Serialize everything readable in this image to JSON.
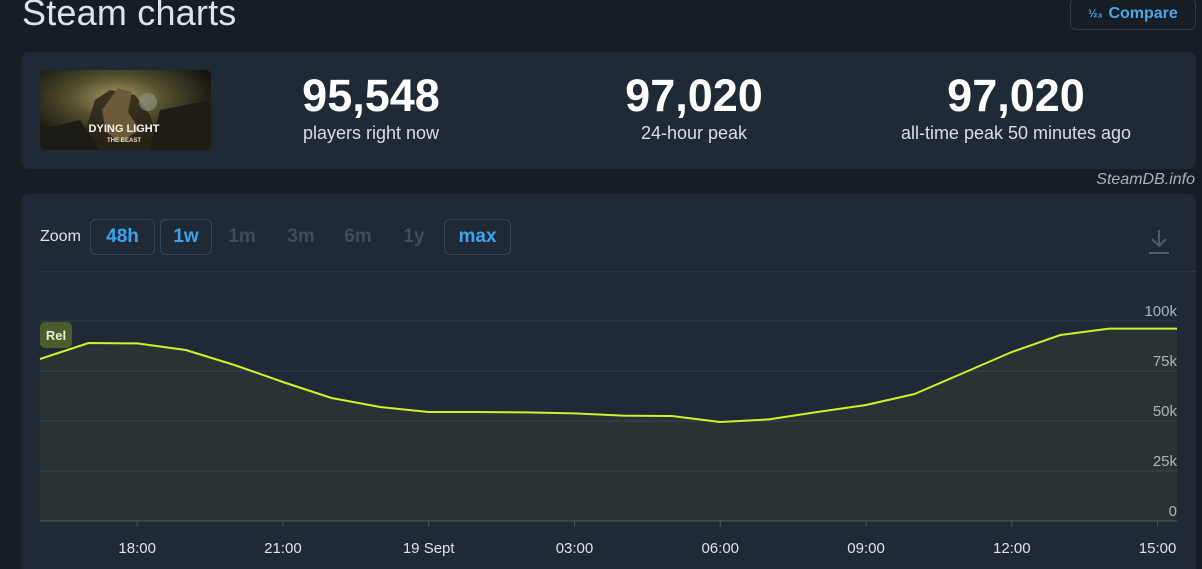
{
  "page": {
    "title": "Steam charts",
    "compare_label": "Compare",
    "compare_icon_text": "½₃"
  },
  "game": {
    "thumbnail_title": "DYING LIGHT",
    "thumbnail_subtitle": "THE BEAST"
  },
  "stats": [
    {
      "value": "95,548",
      "label": "players right now"
    },
    {
      "value": "97,020",
      "label": "24-hour peak"
    },
    {
      "value": "97,020",
      "label": "all-time peak 50 minutes ago"
    }
  ],
  "credit": "SteamDB.info",
  "zoom": {
    "label": "Zoom",
    "buttons": [
      {
        "label": "48h",
        "state": "active"
      },
      {
        "label": "1w",
        "state": "active"
      },
      {
        "label": "1m",
        "state": "disabled"
      },
      {
        "label": "3m",
        "state": "disabled"
      },
      {
        "label": "6m",
        "state": "disabled"
      },
      {
        "label": "1y",
        "state": "disabled"
      },
      {
        "label": "max",
        "state": "active"
      }
    ]
  },
  "icons": {
    "download": "download-icon",
    "compare": "compare-icon"
  },
  "colors": {
    "line": "#d4f02b",
    "accent_blue": "#3ba4f0",
    "panel_bg": "#202a37",
    "page_bg": "#171d25",
    "rel_badge_bg": "#4b5d2a"
  },
  "chart_data": {
    "type": "line",
    "series_badge": "Rel",
    "x_ticks": [
      "18:00",
      "21:00",
      "19 Sept",
      "03:00",
      "06:00",
      "09:00",
      "12:00",
      "15:00"
    ],
    "y_ticks": [
      "0",
      "25k",
      "50k",
      "75k",
      "100k"
    ],
    "ylim": [
      0,
      100000
    ],
    "x_unit": "hours since 18 Sept 18:00",
    "xlim": [
      -2,
      21.4
    ],
    "grid": true,
    "x": [
      -2,
      -1,
      0,
      1,
      2,
      3,
      4,
      5,
      6,
      7,
      8,
      9,
      10,
      11,
      12,
      13,
      14,
      15,
      16,
      17,
      18,
      19,
      20,
      21.4
    ],
    "values": [
      81000,
      89000,
      88800,
      85500,
      78000,
      69500,
      61500,
      57000,
      54500,
      54500,
      54300,
      53800,
      52700,
      52500,
      49500,
      50800,
      54500,
      58000,
      63500,
      74000,
      84500,
      93000,
      96200,
      96200
    ]
  }
}
